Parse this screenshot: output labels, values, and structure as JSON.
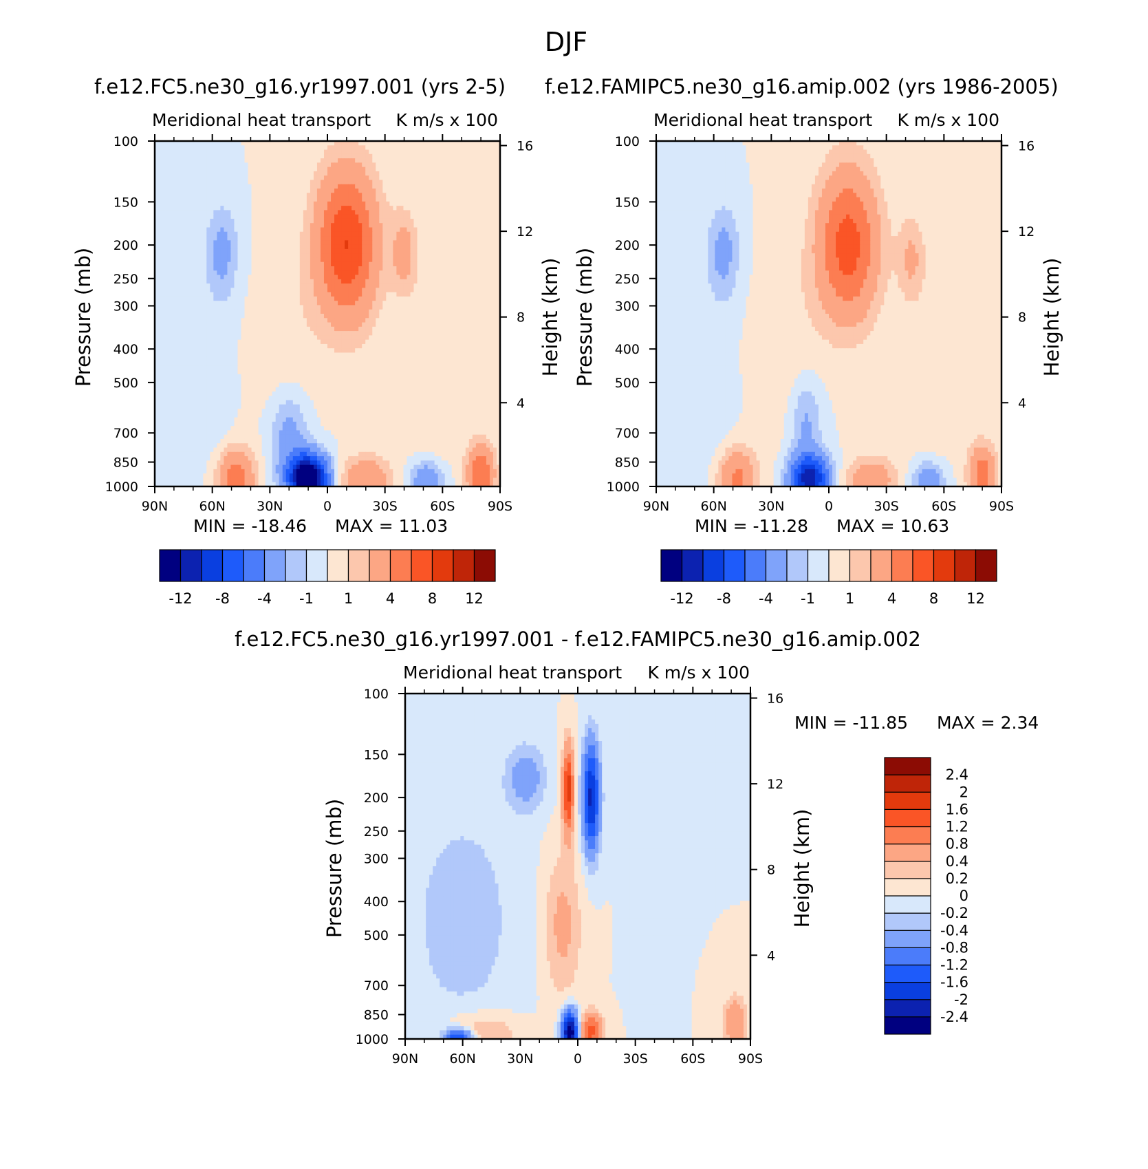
{
  "figure": {
    "title": "DJF"
  },
  "chart_data": [
    {
      "type": "heatmap",
      "case_title": "f.e12.FC5.ne30_g16.yr1997.001 (yrs 2-5)",
      "left_label": "Meridional heat transport",
      "right_label": "K m/s x 100",
      "ylabel": "Pressure (mb)",
      "y2label": "Height (km)",
      "x_ticks": [
        "90N",
        "60N",
        "30N",
        "0",
        "30S",
        "60S",
        "90S"
      ],
      "x_range": [
        90,
        -90
      ],
      "y_ticks": [
        100,
        150,
        200,
        250,
        300,
        400,
        500,
        700,
        850,
        1000
      ],
      "y_range": [
        100,
        1000
      ],
      "y_scale": "log",
      "y2_ticks": [
        16,
        12,
        8,
        4
      ],
      "min_label": "MIN = -18.46",
      "max_label": "MAX = 11.03",
      "min": -18.46,
      "max": 11.03,
      "colorbar": {
        "orientation": "horizontal",
        "levels": [
          -12,
          -10,
          -8,
          -6,
          -4,
          -2,
          -1,
          0,
          1,
          2,
          4,
          6,
          8,
          10,
          12
        ],
        "labels": [
          "-12",
          "-8",
          "-4",
          "-1",
          "1",
          "4",
          "8",
          "12"
        ]
      },
      "features": [
        {
          "lat": -10,
          "p": 200,
          "value": 8,
          "sx": 11,
          "sp": 0.35
        },
        {
          "lat": 55,
          "p": 210,
          "value": -2.5,
          "sx": 6,
          "sp": 0.22
        },
        {
          "lat": -40,
          "p": 210,
          "value": 2.5,
          "sx": 5,
          "sp": 0.2
        },
        {
          "lat": 60,
          "p": 600,
          "value": -0.6,
          "sx": 7,
          "sp": 0.55
        },
        {
          "lat": 20,
          "p": 400,
          "value": 0.8,
          "sx": 12,
          "sp": 0.5
        },
        {
          "lat": -55,
          "p": 500,
          "value": 0.7,
          "sx": 9,
          "sp": 0.6
        },
        {
          "lat": 10,
          "p": 950,
          "value": -16,
          "sx": 7,
          "sp": 0.11
        },
        {
          "lat": 20,
          "p": 720,
          "value": -3,
          "sx": 7,
          "sp": 0.22
        },
        {
          "lat": 48,
          "p": 950,
          "value": 5,
          "sx": 7,
          "sp": 0.14
        },
        {
          "lat": -20,
          "p": 960,
          "value": 4,
          "sx": 9,
          "sp": 0.11
        },
        {
          "lat": -52,
          "p": 960,
          "value": -4,
          "sx": 6,
          "sp": 0.09
        },
        {
          "lat": -80,
          "p": 920,
          "value": 6,
          "sx": 5,
          "sp": 0.14
        }
      ]
    },
    {
      "type": "heatmap",
      "case_title": "f.e12.FAMIPC5.ne30_g16.amip.002 (yrs 1986-2005)",
      "left_label": "Meridional heat transport",
      "right_label": "K m/s x 100",
      "ylabel": "Pressure (mb)",
      "y2label": "Height (km)",
      "x_ticks": [
        "90N",
        "60N",
        "30N",
        "0",
        "30S",
        "60S",
        "90S"
      ],
      "x_range": [
        90,
        -90
      ],
      "y_ticks": [
        100,
        150,
        200,
        250,
        300,
        400,
        500,
        700,
        850,
        1000
      ],
      "y_range": [
        100,
        1000
      ],
      "y_scale": "log",
      "y2_ticks": [
        16,
        12,
        8,
        4
      ],
      "min_label": "MIN = -11.28",
      "max_label": "MAX = 10.63",
      "min": -11.28,
      "max": 10.63,
      "colorbar": {
        "orientation": "horizontal",
        "levels": [
          -12,
          -10,
          -8,
          -6,
          -4,
          -2,
          -1,
          0,
          1,
          2,
          4,
          6,
          8,
          10,
          12
        ],
        "labels": [
          "-12",
          "-8",
          "-4",
          "-1",
          "1",
          "4",
          "8",
          "12"
        ]
      },
      "features": [
        {
          "lat": -10,
          "p": 200,
          "value": 7,
          "sx": 11,
          "sp": 0.35
        },
        {
          "lat": 55,
          "p": 210,
          "value": -2.5,
          "sx": 6,
          "sp": 0.22
        },
        {
          "lat": -43,
          "p": 220,
          "value": 2.2,
          "sx": 5,
          "sp": 0.2
        },
        {
          "lat": 60,
          "p": 600,
          "value": -0.6,
          "sx": 7,
          "sp": 0.55
        },
        {
          "lat": 20,
          "p": 400,
          "value": 0.8,
          "sx": 12,
          "sp": 0.5
        },
        {
          "lat": -55,
          "p": 500,
          "value": 0.6,
          "sx": 9,
          "sp": 0.6
        },
        {
          "lat": 10,
          "p": 950,
          "value": -11,
          "sx": 7,
          "sp": 0.11
        },
        {
          "lat": 12,
          "p": 650,
          "value": -2.5,
          "sx": 6,
          "sp": 0.22
        },
        {
          "lat": 48,
          "p": 950,
          "value": 4.5,
          "sx": 7,
          "sp": 0.14
        },
        {
          "lat": -22,
          "p": 960,
          "value": 3.5,
          "sx": 9,
          "sp": 0.11
        },
        {
          "lat": -52,
          "p": 960,
          "value": -3.5,
          "sx": 6,
          "sp": 0.09
        },
        {
          "lat": -80,
          "p": 920,
          "value": 5,
          "sx": 5,
          "sp": 0.14
        }
      ]
    },
    {
      "type": "heatmap",
      "case_title": "f.e12.FC5.ne30_g16.yr1997.001 - f.e12.FAMIPC5.ne30_g16.amip.002",
      "left_label": "Meridional heat transport",
      "right_label": "K m/s x 100",
      "ylabel": "Pressure (mb)",
      "y2label": "Height (km)",
      "x_ticks": [
        "90N",
        "60N",
        "30N",
        "0",
        "30S",
        "60S",
        "90S"
      ],
      "x_range": [
        90,
        -90
      ],
      "y_ticks": [
        100,
        150,
        200,
        250,
        300,
        400,
        500,
        700,
        850,
        1000
      ],
      "y_range": [
        100,
        1000
      ],
      "y_scale": "log",
      "y2_ticks": [
        16,
        12,
        8,
        4
      ],
      "min_label": "MIN = -11.85",
      "max_label": "MAX = 2.34",
      "min": -11.85,
      "max": 2.34,
      "colorbar": {
        "orientation": "vertical",
        "levels": [
          -2.4,
          -2,
          -1.6,
          -1.2,
          -0.8,
          -0.4,
          -0.2,
          0,
          0.2,
          0.4,
          0.8,
          1.2,
          1.6,
          2,
          2.4
        ],
        "labels": [
          "2.4",
          "2",
          "1.6",
          "1.2",
          "0.8",
          "0.4",
          "0.2",
          "0",
          "-0.2",
          "-0.4",
          "-0.8",
          "-1.2",
          "-1.6",
          "-2",
          "-2.4"
        ]
      },
      "features": [
        {
          "lat": 4,
          "p": 960,
          "value": -2.8,
          "sx": 3,
          "sp": 0.1
        },
        {
          "lat": -7,
          "p": 955,
          "value": 1.3,
          "sx": 4,
          "sp": 0.09
        },
        {
          "lat": -7,
          "p": 200,
          "value": -2.1,
          "sx": 3,
          "sp": 0.25
        },
        {
          "lat": 5,
          "p": 190,
          "value": 1.8,
          "sx": 2,
          "sp": 0.2
        },
        {
          "lat": 27,
          "p": 175,
          "value": -0.6,
          "sx": 7,
          "sp": 0.15
        },
        {
          "lat": 8,
          "p": 470,
          "value": 0.5,
          "sx": 7,
          "sp": 0.35
        },
        {
          "lat": 60,
          "p": 450,
          "value": -0.3,
          "sx": 22,
          "sp": 0.6
        },
        {
          "lat": 50,
          "p": 960,
          "value": 0.5,
          "sx": 14,
          "sp": 0.1
        },
        {
          "lat": 62,
          "p": 990,
          "value": -1.8,
          "sx": 5,
          "sp": 0.04
        },
        {
          "lat": -82,
          "p": 900,
          "value": 0.8,
          "sx": 4,
          "sp": 0.12
        }
      ]
    }
  ],
  "palette": [
    "#000080",
    "#0c22b0",
    "#0a3fe0",
    "#1e5bfa",
    "#4b7cfa",
    "#7fa3fa",
    "#b1c8fa",
    "#d8e8fb",
    "#fde6d2",
    "#fcc7ad",
    "#fca684",
    "#fc7d52",
    "#fa5526",
    "#e33a0d",
    "#bf2508",
    "#8c0c04"
  ],
  "colors": {
    "background": "#ffffff",
    "axis": "#000000"
  }
}
